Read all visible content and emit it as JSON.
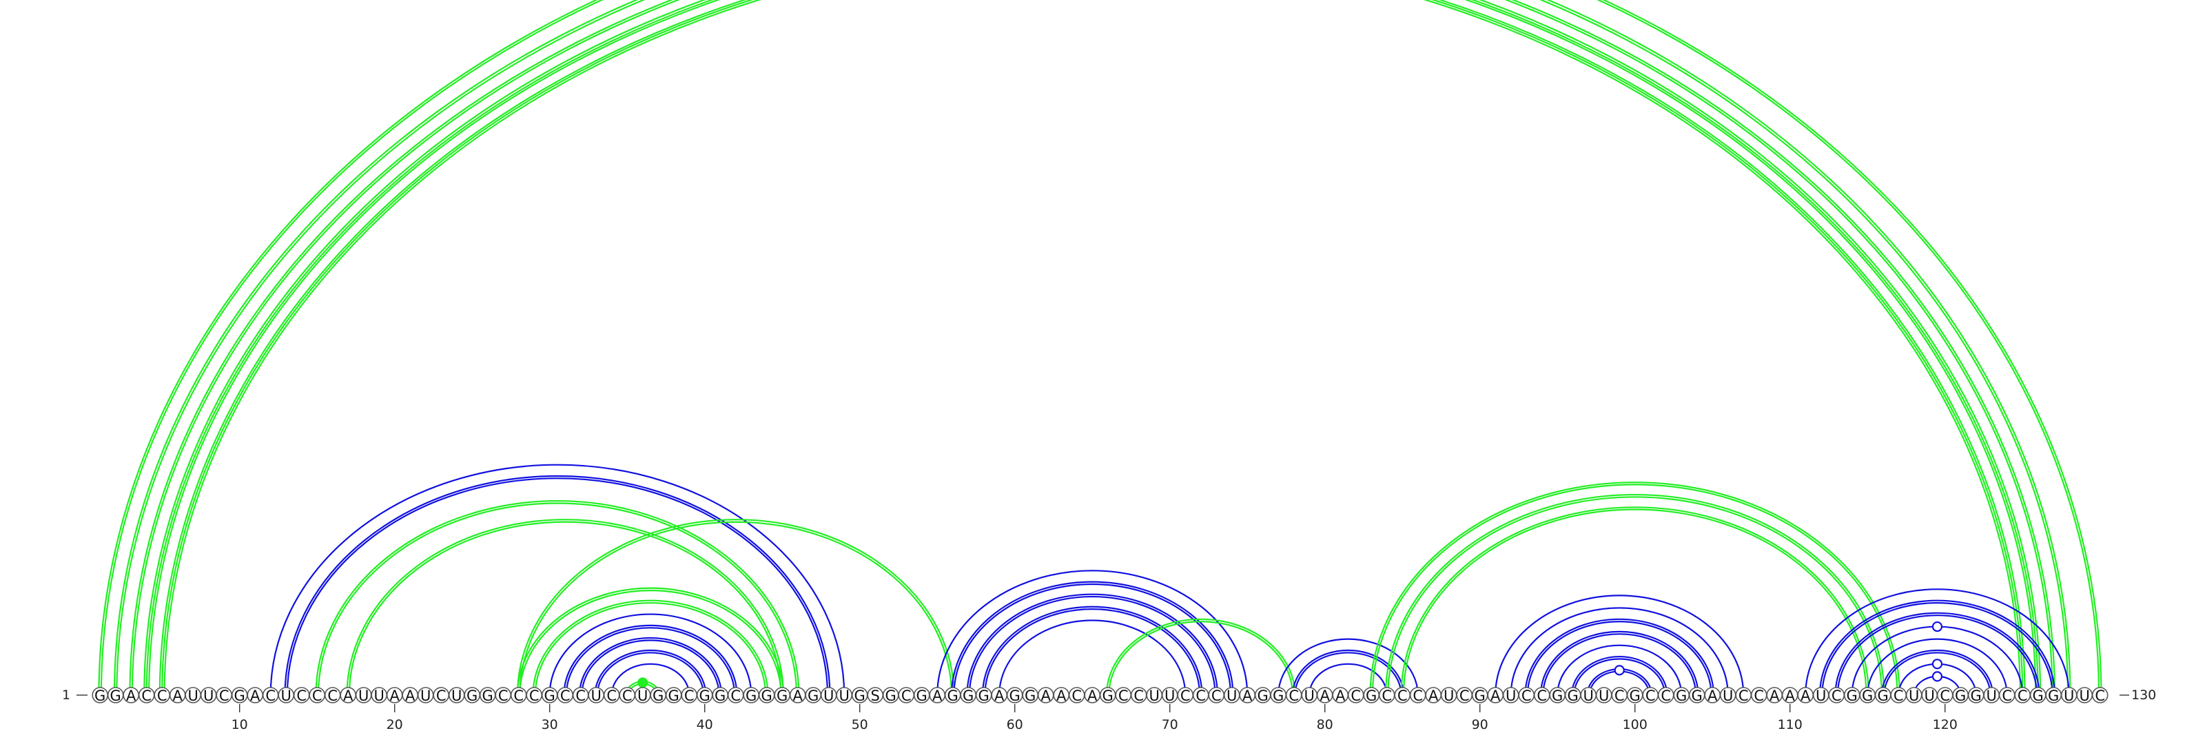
{
  "sequence": "GGACCAUUCGACUCCCAUUAAUCUGGCCCGCCUCCUGGCGGCGGGAGUUGSGCGAGGGAGGAACAGCCUUCCCUAGGCUAACGCCCAUCGAUCCGGUUCGCCGGAUCCAAAUCGGGCUUCGGUCCGGUUC",
  "start_label": "1",
  "end_label": "130",
  "ticks": [
    10,
    20,
    30,
    40,
    50,
    60,
    70,
    80,
    90,
    100,
    110,
    120
  ],
  "colors": {
    "blue": "#1010e0",
    "green": "#22ee22"
  },
  "arcs": [
    {
      "i": 1,
      "j": 130,
      "color": "green",
      "lines": 2
    },
    {
      "i": 2,
      "j": 128,
      "color": "green",
      "lines": 2
    },
    {
      "i": 3,
      "j": 127,
      "color": "green",
      "lines": 2
    },
    {
      "i": 4,
      "j": 126,
      "color": "green",
      "lines": 3
    },
    {
      "i": 5,
      "j": 125,
      "color": "green",
      "lines": 3
    },
    {
      "i": 12,
      "j": 49,
      "color": "blue",
      "lines": 1
    },
    {
      "i": 13,
      "j": 48,
      "color": "blue",
      "lines": 2
    },
    {
      "i": 15,
      "j": 46,
      "color": "green",
      "lines": 2
    },
    {
      "i": 17,
      "j": 45,
      "color": "green",
      "lines": 2
    },
    {
      "i": 28,
      "j": 56,
      "color": "green",
      "lines": 2
    },
    {
      "i": 28,
      "j": 45,
      "color": "green",
      "lines": 2
    },
    {
      "i": 29,
      "j": 44,
      "color": "green",
      "lines": 2
    },
    {
      "i": 30,
      "j": 43,
      "color": "blue",
      "lines": 1
    },
    {
      "i": 31,
      "j": 42,
      "color": "blue",
      "lines": 2
    },
    {
      "i": 32,
      "j": 41,
      "color": "blue",
      "lines": 2
    },
    {
      "i": 33,
      "j": 40,
      "color": "blue",
      "lines": 2
    },
    {
      "i": 34,
      "j": 39,
      "color": "blue",
      "lines": 1
    },
    {
      "i": 35,
      "j": 37,
      "color": "green",
      "lines": 2
    },
    {
      "i": 55,
      "j": 75,
      "color": "blue",
      "lines": 1
    },
    {
      "i": 56,
      "j": 74,
      "color": "blue",
      "lines": 2
    },
    {
      "i": 57,
      "j": 73,
      "color": "blue",
      "lines": 2
    },
    {
      "i": 58,
      "j": 72,
      "color": "blue",
      "lines": 2
    },
    {
      "i": 59,
      "j": 71,
      "color": "blue",
      "lines": 1
    },
    {
      "i": 66,
      "j": 78,
      "color": "green",
      "lines": 2
    },
    {
      "i": 77,
      "j": 86,
      "color": "blue",
      "lines": 1
    },
    {
      "i": 78,
      "j": 85,
      "color": "blue",
      "lines": 2
    },
    {
      "i": 79,
      "j": 84,
      "color": "blue",
      "lines": 1
    },
    {
      "i": 83,
      "j": 117,
      "color": "green",
      "lines": 2
    },
    {
      "i": 84,
      "j": 116,
      "color": "green",
      "lines": 2
    },
    {
      "i": 85,
      "j": 115,
      "color": "green",
      "lines": 2
    },
    {
      "i": 91,
      "j": 107,
      "color": "blue",
      "lines": 1
    },
    {
      "i": 92,
      "j": 106,
      "color": "blue",
      "lines": 1
    },
    {
      "i": 93,
      "j": 105,
      "color": "blue",
      "lines": 2
    },
    {
      "i": 94,
      "j": 104,
      "color": "blue",
      "lines": 2
    },
    {
      "i": 95,
      "j": 103,
      "color": "blue",
      "lines": 1
    },
    {
      "i": 96,
      "j": 102,
      "color": "blue",
      "lines": 2
    },
    {
      "i": 97,
      "j": 101,
      "color": "blue",
      "lines": 2
    },
    {
      "i": 111,
      "j": 128,
      "color": "blue",
      "lines": 1
    },
    {
      "i": 112,
      "j": 127,
      "color": "blue",
      "lines": 2
    },
    {
      "i": 113,
      "j": 126,
      "color": "blue",
      "lines": 2
    },
    {
      "i": 114,
      "j": 125,
      "color": "blue",
      "lines": 1
    },
    {
      "i": 115,
      "j": 124,
      "color": "blue",
      "lines": 1
    },
    {
      "i": 116,
      "j": 123,
      "color": "blue",
      "lines": 2
    },
    {
      "i": 117,
      "j": 122,
      "color": "blue",
      "lines": 1
    },
    {
      "i": 118,
      "j": 121,
      "color": "blue",
      "lines": 1
    }
  ],
  "markers": [
    {
      "i": 1,
      "j": 130,
      "color": "green",
      "filled": false
    },
    {
      "i": 35,
      "j": 37,
      "color": "green",
      "filled": true
    },
    {
      "i": 97,
      "j": 101,
      "color": "blue",
      "filled": false
    },
    {
      "i": 114,
      "j": 125,
      "color": "blue",
      "filled": false
    },
    {
      "i": 117,
      "j": 122,
      "color": "blue",
      "filled": false
    },
    {
      "i": 118,
      "j": 121,
      "color": "blue",
      "filled": false
    }
  ]
}
